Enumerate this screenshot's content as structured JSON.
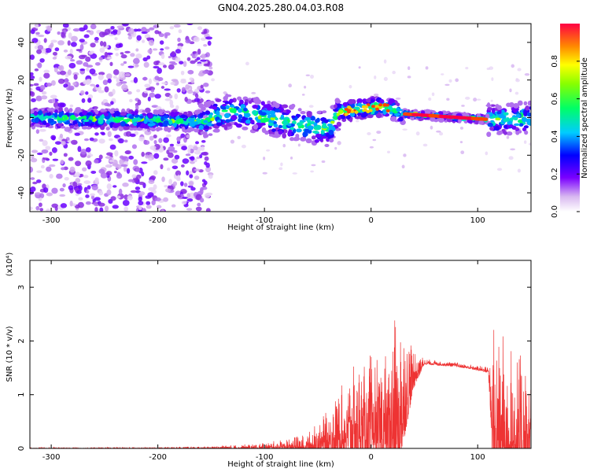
{
  "title": "GN04.2025.280.04.03.R08",
  "chart_data": [
    {
      "type": "heatmap",
      "name": "spectrogram",
      "xlabel": "Height of straight line (km)",
      "ylabel": "Frequency (Hz)",
      "xlim": [
        -320,
        150
      ],
      "ylim": [
        -50,
        50
      ],
      "xticks": [
        -300,
        -200,
        -100,
        0,
        100
      ],
      "yticks": [
        -40,
        -20,
        0,
        20,
        40
      ],
      "colorbar": {
        "label": "Normalized spectral amplitude",
        "range": [
          0,
          1
        ],
        "ticks": [
          0.0,
          0.2,
          0.4,
          0.6,
          0.8
        ]
      },
      "ridge": [
        {
          "x": -320,
          "f": 0
        },
        {
          "x": -160,
          "f": -2
        },
        {
          "x": -130,
          "f": 4
        },
        {
          "x": -100,
          "f": 0
        },
        {
          "x": -40,
          "f": -6
        },
        {
          "x": -30,
          "f": 3
        },
        {
          "x": 10,
          "f": 6
        },
        {
          "x": 30,
          "f": 2
        },
        {
          "x": 110,
          "f": -1
        },
        {
          "x": 150,
          "f": 0
        }
      ]
    },
    {
      "type": "line",
      "name": "snr",
      "xlabel": "Height of straight line (km)",
      "ylabel": "SNR (10 * v/v)",
      "exponent_label": "(x10⁴)",
      "xlim": [
        -320,
        150
      ],
      "ylim": [
        0,
        3.5
      ],
      "xticks": [
        -300,
        -200,
        -100,
        0,
        100
      ],
      "yticks": [
        0,
        1,
        2,
        3
      ],
      "color": "#ee3333",
      "envelope": [
        {
          "x": -320,
          "base": 0.0,
          "amp": 0.02
        },
        {
          "x": -200,
          "base": 0.0,
          "amp": 0.04
        },
        {
          "x": -150,
          "base": 0.0,
          "amp": 0.06
        },
        {
          "x": -100,
          "base": 0.02,
          "amp": 0.12
        },
        {
          "x": -60,
          "base": 0.05,
          "amp": 0.35
        },
        {
          "x": -40,
          "base": 0.2,
          "amp": 0.8
        },
        {
          "x": -20,
          "base": 0.4,
          "amp": 1.6
        },
        {
          "x": -5,
          "base": 0.5,
          "amp": 2.0
        },
        {
          "x": 10,
          "base": 0.5,
          "amp": 1.8
        },
        {
          "x": 25,
          "base": 0.6,
          "amp": 3.0
        },
        {
          "x": 40,
          "base": 1.4,
          "amp": 0.8
        },
        {
          "x": 50,
          "base": 1.6,
          "amp": 0.1
        },
        {
          "x": 80,
          "base": 1.55,
          "amp": 0.08
        },
        {
          "x": 110,
          "base": 1.45,
          "amp": 0.1
        },
        {
          "x": 115,
          "base": 0.4,
          "amp": 3.0
        },
        {
          "x": 130,
          "base": 0.3,
          "amp": 2.6
        },
        {
          "x": 150,
          "base": 0.2,
          "amp": 2.0
        }
      ]
    }
  ]
}
